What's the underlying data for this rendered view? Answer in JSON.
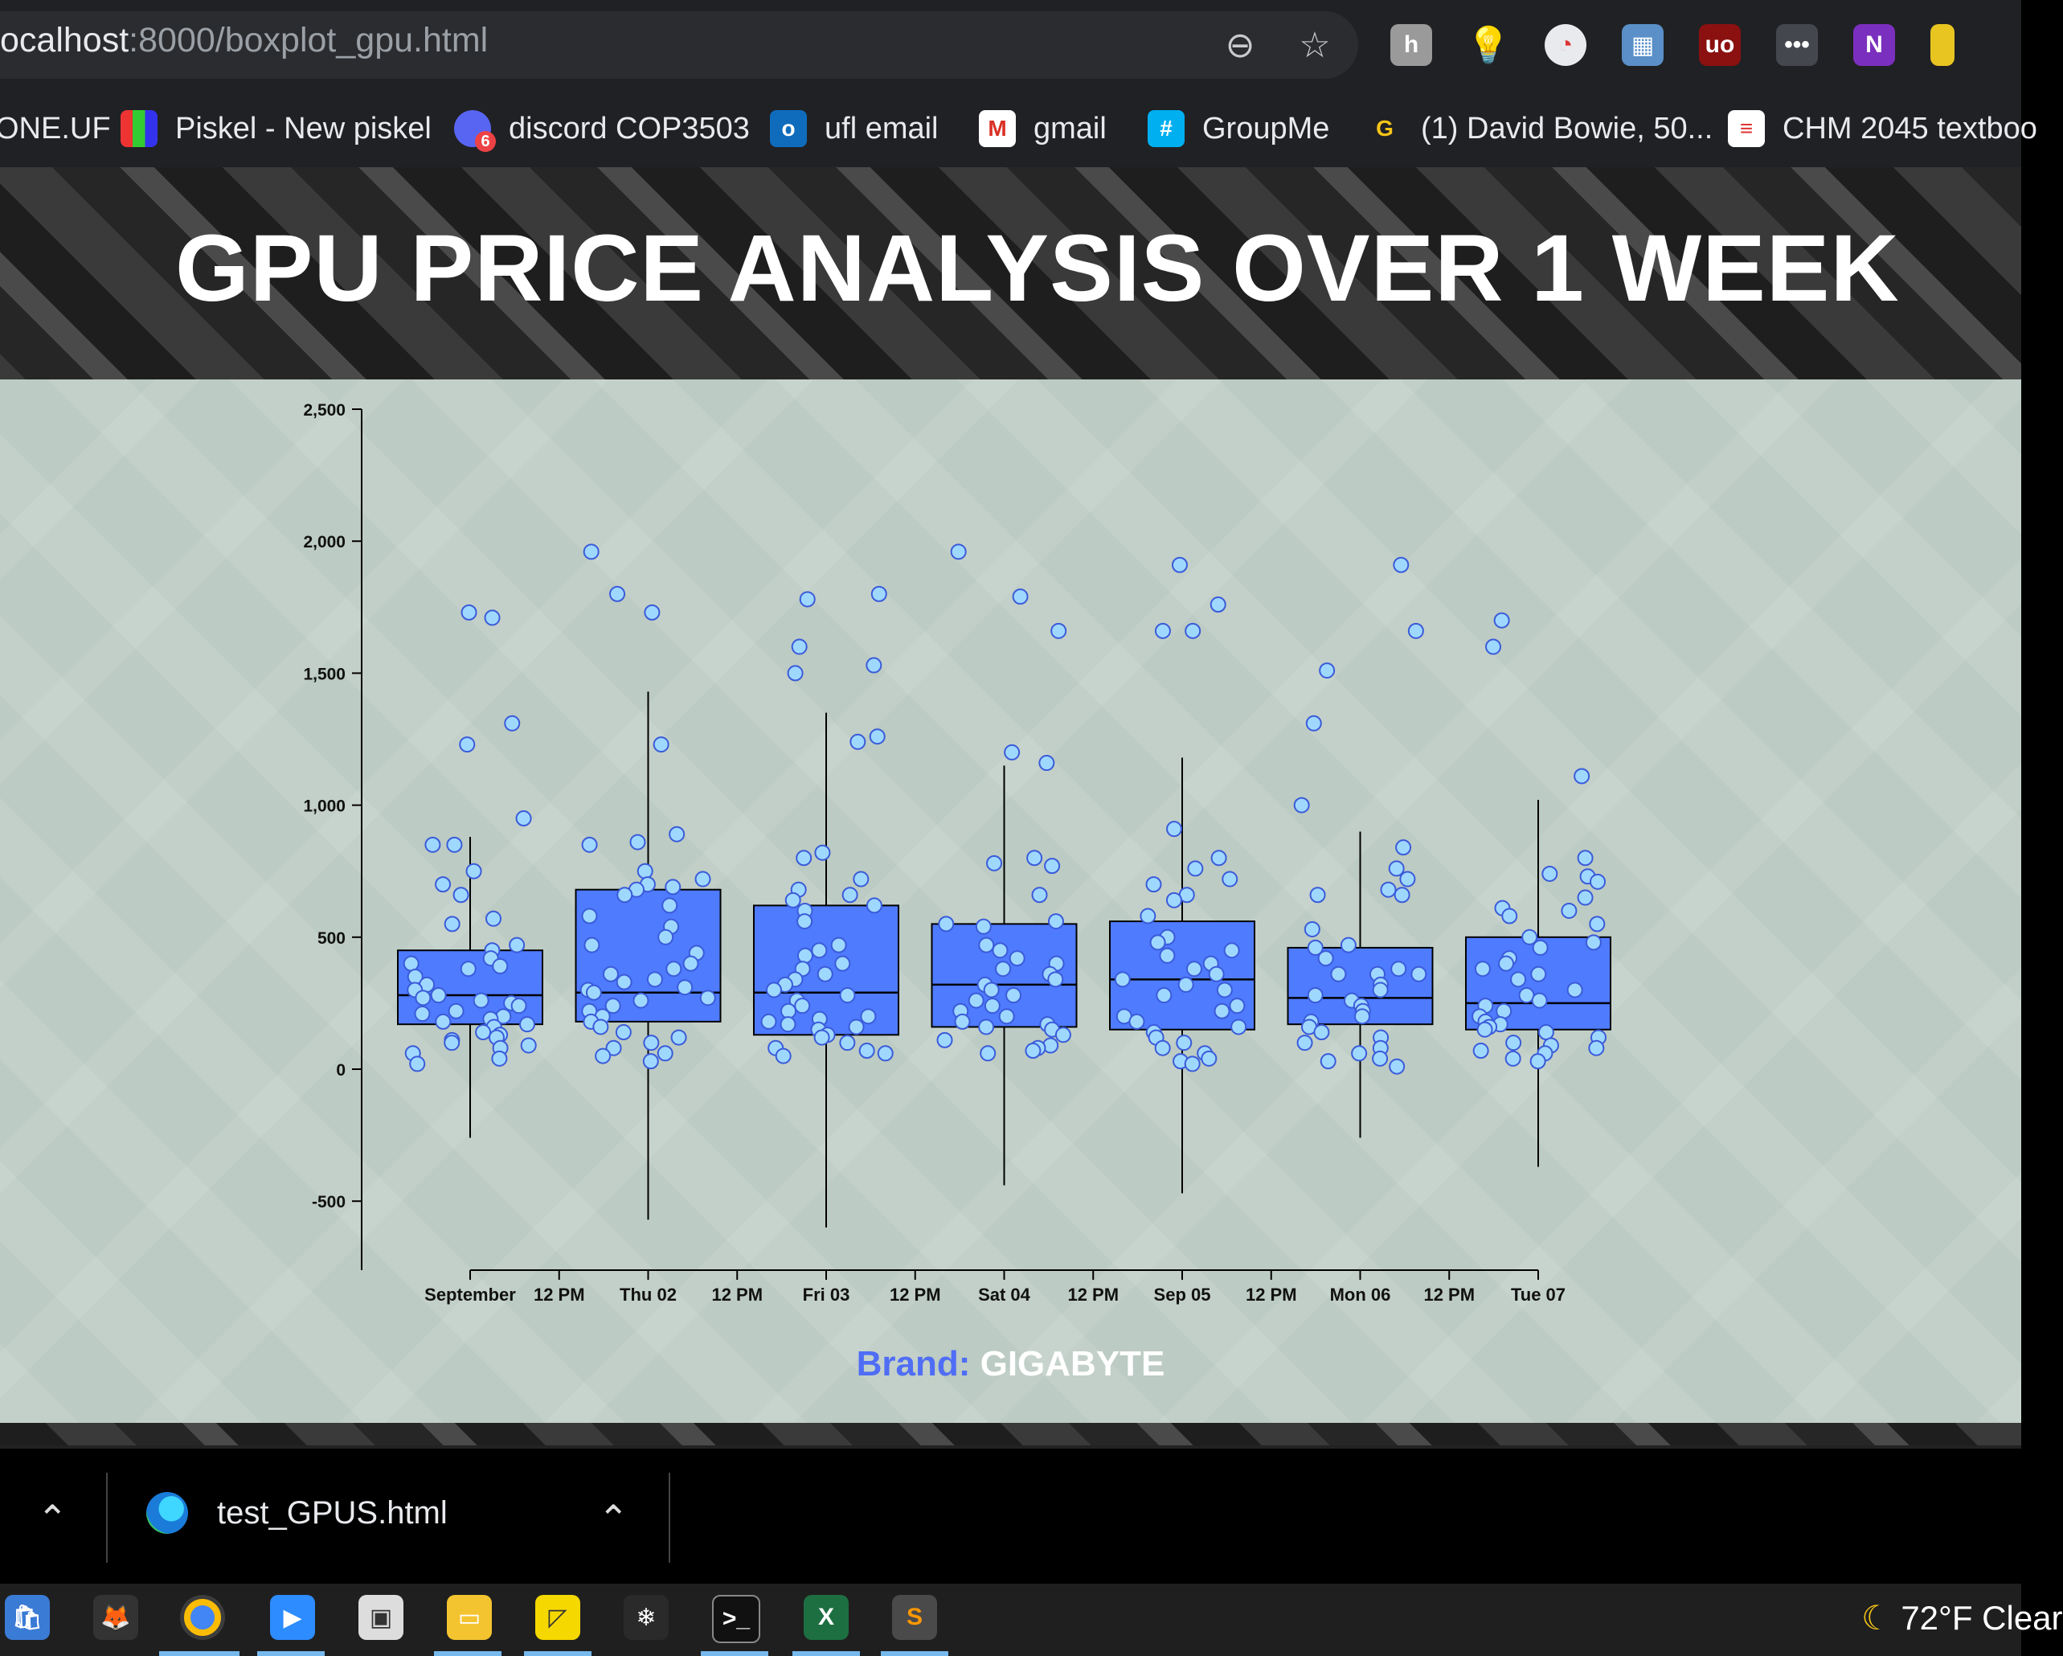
{
  "browser": {
    "url_host": "ocalhost",
    "url_path": ":8000/boxplot_gpu.html",
    "bookmarks": [
      {
        "label": "ONE.UF",
        "icon": "one-uf-icon"
      },
      {
        "label": "Piskel - New piskel",
        "icon": "piskel-icon"
      },
      {
        "label": "discord COP3503",
        "icon": "discord-icon",
        "badge": "6"
      },
      {
        "label": "ufl email",
        "icon": "outlook-icon"
      },
      {
        "label": "gmail",
        "icon": "gmail-icon"
      },
      {
        "label": "GroupMe",
        "icon": "groupme-icon"
      },
      {
        "label": "(1) David Bowie, 50...",
        "icon": "genius-icon"
      },
      {
        "label": "CHM 2045 textboo",
        "icon": "docs-icon"
      }
    ]
  },
  "page": {
    "title": "GPU PRICE ANALYSIS OVER 1 WEEK",
    "brand_label": "Brand:",
    "brand_value": "GIGABYTE"
  },
  "colors": {
    "box_fill": "#4f7bff",
    "point_fill": "#9fd8ff",
    "point_stroke": "#3b5bd9",
    "panel_bg": "#bccbc3",
    "brand_label": "#4f6df5"
  },
  "chart_data": {
    "type": "box",
    "ylim": [
      -700,
      2500
    ],
    "y_ticks": [
      2500,
      2000,
      1500,
      1000,
      500,
      0,
      -500
    ],
    "y_tick_labels": [
      "2,500",
      "2,000",
      "1,500",
      "1,000",
      "500",
      "0",
      "-500"
    ],
    "x_tick_labels": [
      "September",
      "12 PM",
      "Thu 02",
      "12 PM",
      "Fri 03",
      "12 PM",
      "Sat 04",
      "12 PM",
      "Sep 05",
      "12 PM",
      "Mon 06",
      "12 PM",
      "Tue 07"
    ],
    "categories": [
      "September",
      "Thu 02",
      "Fri 03",
      "Sat 04",
      "Sep 05",
      "Mon 06",
      "Tue 07"
    ],
    "boxes": [
      {
        "q1": 170,
        "median": 280,
        "q3": 450,
        "whisker_low": -260,
        "whisker_high": 880
      },
      {
        "q1": 180,
        "median": 290,
        "q3": 680,
        "whisker_low": -570,
        "whisker_high": 1430
      },
      {
        "q1": 130,
        "median": 290,
        "q3": 620,
        "whisker_low": -600,
        "whisker_high": 1350
      },
      {
        "q1": 160,
        "median": 320,
        "q3": 550,
        "whisker_low": -440,
        "whisker_high": 1150
      },
      {
        "q1": 150,
        "median": 340,
        "q3": 560,
        "whisker_low": -470,
        "whisker_high": 1180
      },
      {
        "q1": 170,
        "median": 270,
        "q3": 460,
        "whisker_low": -260,
        "whisker_high": 900
      },
      {
        "q1": 150,
        "median": 250,
        "q3": 500,
        "whisker_low": -370,
        "whisker_high": 1020
      }
    ],
    "points": [
      [
        1730,
        1710,
        1310,
        1230,
        950,
        850,
        850,
        750,
        700,
        660,
        570,
        550,
        470,
        450,
        420,
        400,
        390,
        380,
        350,
        320,
        300,
        280,
        270,
        260,
        250,
        240,
        220,
        210,
        200,
        190,
        180,
        170,
        160,
        140,
        130,
        120,
        110,
        100,
        90,
        80,
        60,
        40,
        20
      ],
      [
        1960,
        1800,
        1730,
        1230,
        890,
        860,
        850,
        750,
        720,
        700,
        690,
        680,
        660,
        620,
        580,
        540,
        500,
        470,
        440,
        400,
        380,
        360,
        340,
        330,
        310,
        300,
        290,
        270,
        260,
        240,
        220,
        200,
        180,
        160,
        140,
        120,
        100,
        80,
        60,
        30,
        50
      ],
      [
        1800,
        1780,
        1600,
        1530,
        1500,
        1260,
        1240,
        820,
        800,
        720,
        680,
        660,
        640,
        620,
        600,
        560,
        470,
        450,
        430,
        400,
        380,
        360,
        340,
        320,
        300,
        280,
        260,
        240,
        220,
        200,
        190,
        180,
        170,
        160,
        150,
        130,
        120,
        100,
        80,
        70,
        60,
        50
      ],
      [
        1960,
        1790,
        1660,
        1200,
        1160,
        800,
        780,
        770,
        660,
        560,
        550,
        540,
        470,
        450,
        420,
        400,
        380,
        360,
        340,
        320,
        300,
        280,
        260,
        240,
        220,
        200,
        180,
        170,
        160,
        150,
        130,
        110,
        90,
        80,
        70,
        60
      ],
      [
        1910,
        1760,
        1660,
        1660,
        910,
        800,
        760,
        720,
        700,
        660,
        640,
        580,
        500,
        480,
        450,
        430,
        400,
        380,
        360,
        340,
        320,
        300,
        280,
        240,
        220,
        200,
        180,
        160,
        140,
        120,
        100,
        80,
        60,
        40,
        30,
        20
      ],
      [
        1910,
        1660,
        1510,
        1310,
        1000,
        840,
        760,
        720,
        680,
        660,
        660,
        530,
        470,
        460,
        420,
        380,
        360,
        360,
        360,
        320,
        300,
        280,
        260,
        240,
        220,
        200,
        180,
        160,
        140,
        120,
        100,
        80,
        60,
        40,
        30,
        10
      ],
      [
        1700,
        1600,
        1110,
        800,
        740,
        730,
        710,
        650,
        610,
        600,
        580,
        550,
        500,
        480,
        460,
        420,
        400,
        380,
        360,
        340,
        300,
        280,
        260,
        240,
        220,
        200,
        180,
        170,
        160,
        150,
        140,
        120,
        100,
        90,
        80,
        70,
        60,
        40,
        30
      ]
    ]
  },
  "downloads": {
    "file": "test_GPUS.html"
  },
  "taskbar": {
    "weather": "72°F  Clear"
  }
}
